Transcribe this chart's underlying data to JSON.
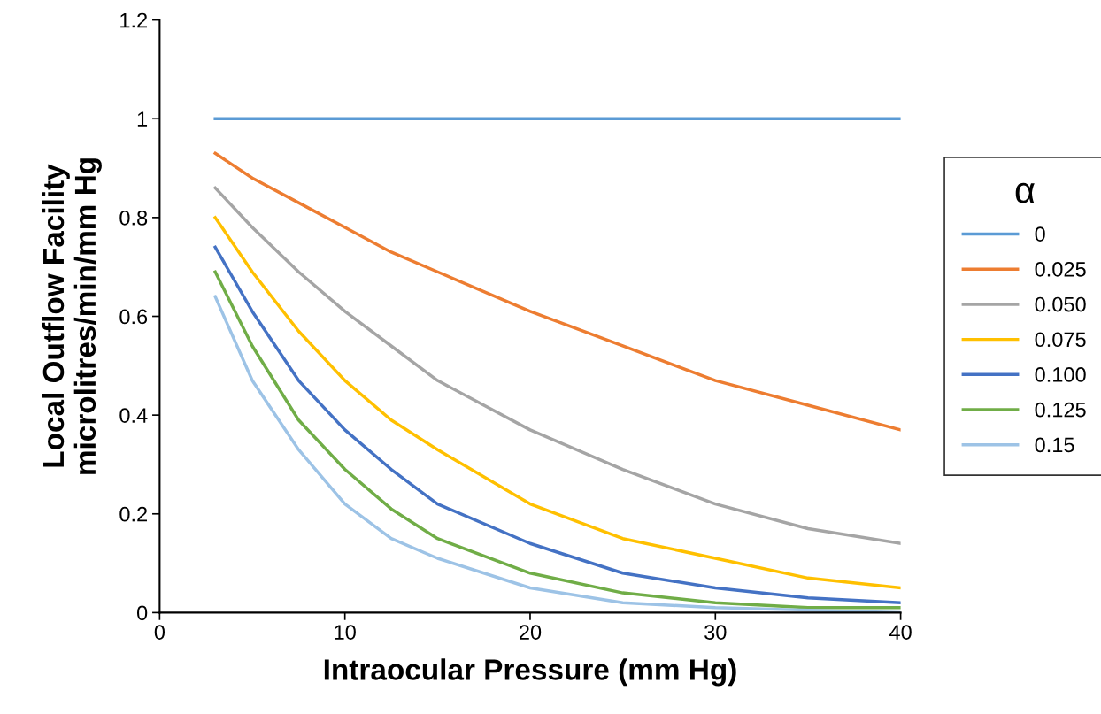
{
  "chart_data": {
    "type": "line",
    "xlabel": "Intraocular Pressure (mm Hg)",
    "ylabel": "Local Outflow Facility\nmicrolitres/min/mm Hg",
    "legend_title": "α",
    "legend": "right",
    "grid": false,
    "marker": "none",
    "line_style": "solid",
    "x": [
      3,
      5,
      7.5,
      10,
      12.5,
      15,
      20,
      25,
      30,
      35,
      40
    ],
    "xlim": [
      0,
      40
    ],
    "xticks": [
      0,
      10,
      20,
      30,
      40
    ],
    "ylim": [
      0,
      1.2
    ],
    "yticks": [
      0,
      {
        "value": 0.2,
        "label": "0.2"
      },
      {
        "value": 0.4,
        "label": "0.4"
      },
      {
        "value": 0.6,
        "label": "0.6"
      },
      {
        "value": 0.8,
        "label": "0.8"
      },
      1,
      {
        "value": 1.2,
        "label": "1.2"
      }
    ],
    "series": [
      {
        "name": "0",
        "color": "#5b9bd5",
        "values": [
          1,
          1,
          1,
          1,
          1,
          1,
          1,
          1,
          1,
          1,
          1
        ]
      },
      {
        "name": "0.025",
        "color": "#ed7d31",
        "values": [
          0.93,
          0.88,
          0.83,
          0.78,
          0.73,
          0.69,
          0.61,
          0.54,
          0.47,
          0.42,
          0.37
        ]
      },
      {
        "name": "0.050",
        "color": "#a5a5a5",
        "values": [
          0.86,
          0.78,
          0.69,
          0.61,
          0.54,
          0.47,
          0.37,
          0.29,
          0.22,
          0.17,
          0.14
        ]
      },
      {
        "name": "0.075",
        "color": "#ffc000",
        "values": [
          0.8,
          0.69,
          0.57,
          0.47,
          0.39,
          0.33,
          0.22,
          0.15,
          0.11,
          0.07,
          0.05
        ]
      },
      {
        "name": "0.100",
        "color": "#4472c4",
        "values": [
          0.74,
          0.61,
          0.47,
          0.37,
          0.29,
          0.22,
          0.14,
          0.08,
          0.05,
          0.03,
          0.02
        ]
      },
      {
        "name": "0.125",
        "color": "#70ad47",
        "values": [
          0.69,
          0.54,
          0.39,
          0.29,
          0.21,
          0.15,
          0.08,
          0.04,
          0.02,
          0.01,
          0.01
        ]
      },
      {
        "name": "0.15",
        "color": "#9dc3e6",
        "values": [
          0.64,
          0.47,
          0.33,
          0.22,
          0.15,
          0.11,
          0.05,
          0.02,
          0.01,
          0.005,
          0
        ]
      }
    ]
  }
}
